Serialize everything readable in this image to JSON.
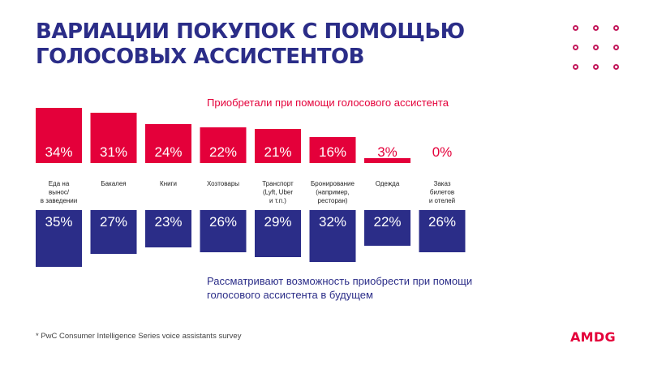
{
  "title_line1": "Вариации покупок с помощью",
  "title_line2": "голосовых ассистентов",
  "footnote": "* PwC Consumer Intelligence Series voice assistants survey",
  "logo": "AMDG",
  "colors": {
    "top": "#e4003a",
    "bottom": "#2b2d88",
    "title": "#2b2d88",
    "dots": "#c2185b"
  },
  "chart_data": {
    "type": "bar",
    "categories": [
      [
        "Еда на",
        "вынос/",
        "в заведении"
      ],
      [
        "Бакалея"
      ],
      [
        "Книги"
      ],
      [
        "Хозтовары"
      ],
      [
        "Транспорт",
        "(Lyft, Uber",
        "и т.п.)"
      ],
      [
        "Бронирование",
        "(например,",
        "ресторан)"
      ],
      [
        "Одежда"
      ],
      [
        "Заказ",
        "билетов",
        "и отелей"
      ]
    ],
    "series": [
      {
        "name": "Приобретали при помощи голосового ассистента",
        "values": [
          34,
          31,
          24,
          22,
          21,
          16,
          3,
          0
        ]
      },
      {
        "name": "Рассматривают возможность приобрести при помощи голосового ассистента в будущем",
        "values": [
          35,
          27,
          23,
          26,
          29,
          32,
          22,
          26
        ]
      }
    ],
    "unit": "%",
    "layout": "mirrored bars: first series grows upward, second series grows downward, category labels between",
    "grid": false
  }
}
